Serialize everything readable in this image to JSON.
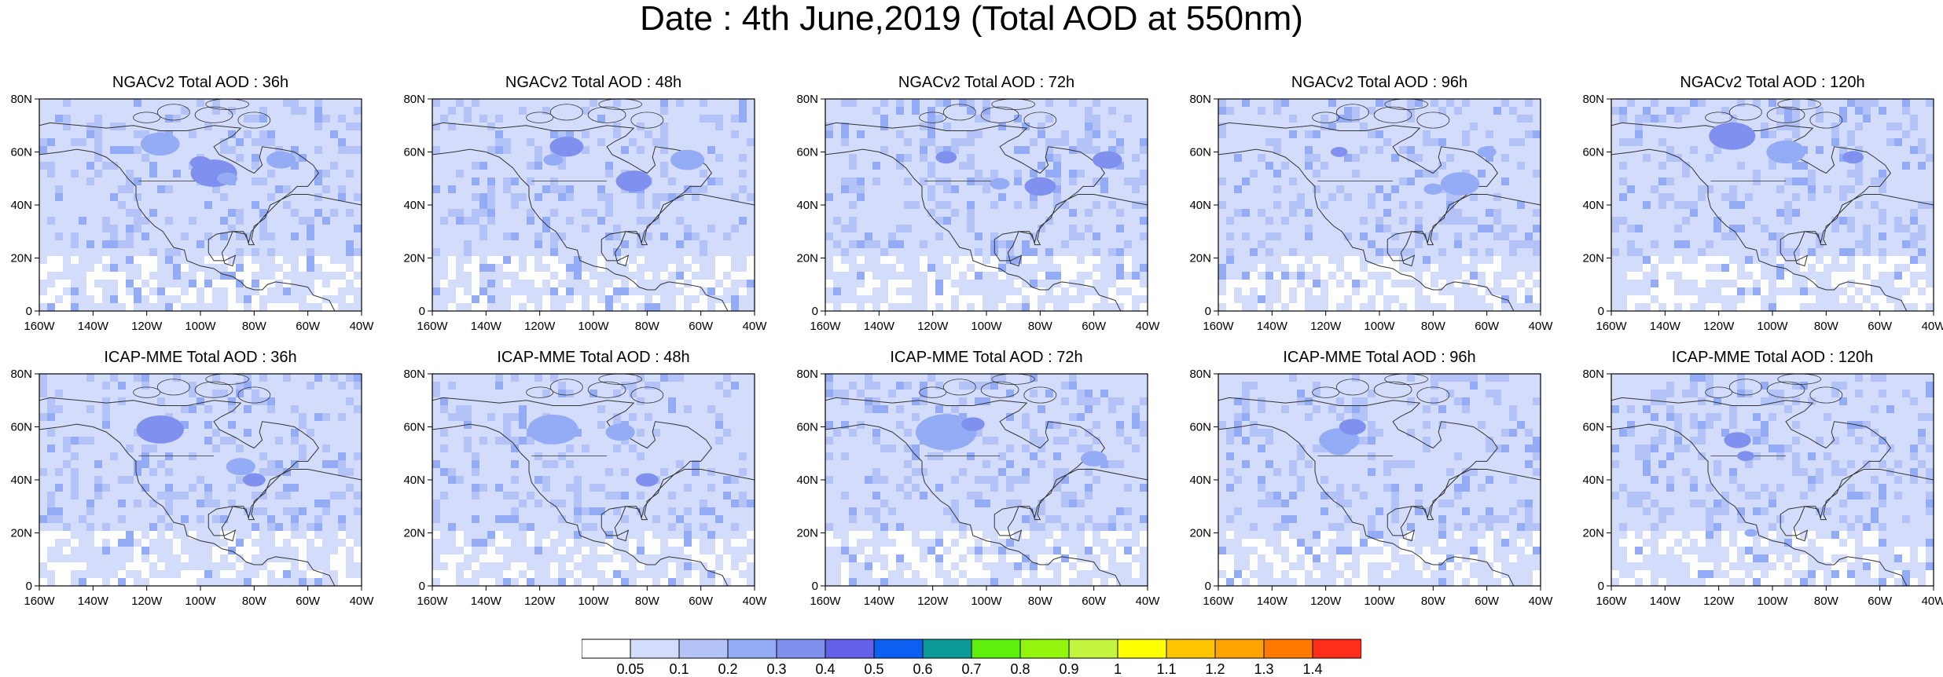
{
  "title": "Date : 4th June,2019 (Total AOD at 550nm)",
  "rows": [
    {
      "model": "NGACv2",
      "panels": [
        {
          "title": "NGACv2 Total AOD : 36h"
        },
        {
          "title": "NGACv2 Total AOD : 48h"
        },
        {
          "title": "NGACv2 Total AOD : 72h"
        },
        {
          "title": "NGACv2 Total AOD : 96h"
        },
        {
          "title": "NGACv2 Total AOD : 120h"
        }
      ]
    },
    {
      "model": "ICAP-MME",
      "panels": [
        {
          "title": "ICAP-MME Total AOD : 36h"
        },
        {
          "title": "ICAP-MME Total AOD : 48h"
        },
        {
          "title": "ICAP-MME Total AOD : 72h"
        },
        {
          "title": "ICAP-MME Total AOD : 96h"
        },
        {
          "title": "ICAP-MME Total AOD : 120h"
        }
      ]
    }
  ],
  "axes": {
    "lat_ticks": [
      "80N",
      "60N",
      "40N",
      "20N",
      "0"
    ],
    "lon_ticks": [
      "160W",
      "140W",
      "120W",
      "100W",
      "80W",
      "60W",
      "40W"
    ],
    "lat_range": [
      0,
      80
    ],
    "lon_range": [
      -160,
      -40
    ]
  },
  "colorbar": {
    "labels": [
      "0.05",
      "0.1",
      "0.2",
      "0.3",
      "0.4",
      "0.5",
      "0.6",
      "0.7",
      "0.8",
      "0.9",
      "1",
      "1.1",
      "1.2",
      "1.3",
      "1.4"
    ],
    "colors": [
      "#ffffff",
      "#d3dcfb",
      "#b4c3f7",
      "#94acf5",
      "#7f90ef",
      "#6361e9",
      "#0c5ff0",
      "#0b9a98",
      "#5ef00c",
      "#93f50c",
      "#c4f53e",
      "#ffff00",
      "#ffc400",
      "#ffa300",
      "#ff7a00",
      "#ff2e1a"
    ]
  },
  "ocean_color": "#d3dcfb",
  "land_color": "#b8c6f7"
}
